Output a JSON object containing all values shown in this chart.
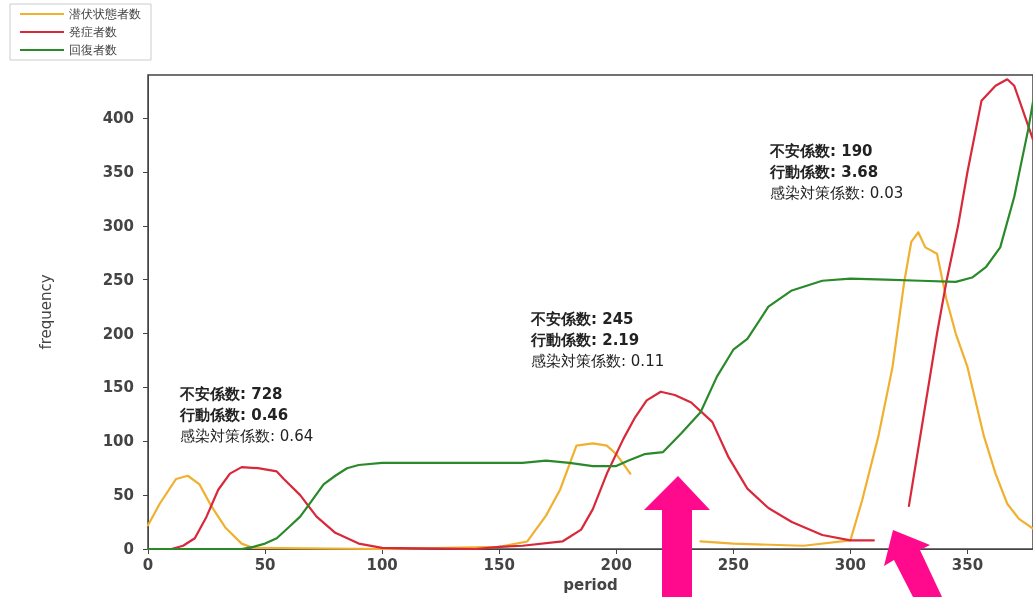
{
  "chart_data": {
    "type": "line",
    "xlabel": "period",
    "ylabel": "frequency",
    "xlim": [
      0,
      378
    ],
    "xticks": [
      0,
      50,
      100,
      150,
      200,
      250,
      300,
      350
    ],
    "ylim": [
      0,
      440
    ],
    "yticks": [
      0,
      50,
      100,
      150,
      200,
      250,
      300,
      350,
      400
    ],
    "grid": false,
    "legend": "top left",
    "marker": "none",
    "line_style": "solid",
    "series": [
      {
        "name": "潜伏状態者数",
        "color": "#f0b030",
        "x": [
          0,
          5,
          12,
          17,
          22,
          27,
          33,
          40,
          45,
          100,
          150,
          162,
          170,
          176,
          183,
          190,
          196,
          200,
          206,
          213,
          220,
          228,
          236,
          250,
          280,
          300,
          305,
          312,
          318,
          323,
          326,
          329,
          332,
          337,
          341,
          345,
          350,
          357,
          362,
          367,
          372,
          378
        ],
        "values": [
          22,
          42,
          65,
          68,
          60,
          40,
          20,
          5,
          1,
          0,
          2,
          7,
          31,
          55,
          96,
          98,
          96,
          88,
          70,
          null,
          null,
          null,
          7,
          5,
          3,
          8,
          45,
          105,
          169,
          248,
          285,
          294,
          280,
          274,
          232,
          200,
          169,
          105,
          70,
          42,
          28,
          19
        ]
      },
      {
        "name": "発症者数",
        "color": "#d8283a",
        "x": [
          0,
          10,
          15,
          20,
          25,
          30,
          35,
          40,
          47,
          55,
          58,
          65,
          72,
          80,
          90,
          100,
          140,
          150,
          160,
          177,
          185,
          190,
          196,
          203,
          208,
          213,
          219,
          225,
          232,
          241,
          248,
          256,
          265,
          275,
          288,
          300,
          310,
          318,
          325,
          331,
          337,
          341,
          346,
          350,
          356,
          362,
          367,
          370,
          374,
          378
        ],
        "values": [
          0,
          0,
          3,
          10,
          30,
          55,
          70,
          76,
          75,
          72,
          65,
          50,
          30,
          15,
          5,
          1,
          0,
          2,
          3,
          7,
          18,
          37,
          70,
          102,
          122,
          138,
          146,
          143,
          136,
          118,
          85,
          56,
          38,
          25,
          13,
          8,
          8,
          null,
          40,
          120,
          200,
          248,
          300,
          350,
          416,
          430,
          436,
          430,
          405,
          380
        ]
      },
      {
        "name": "回復者数",
        "color": "#2a8a2a",
        "x": [
          0,
          40,
          45,
          50,
          55,
          60,
          65,
          70,
          75,
          80,
          85,
          90,
          100,
          160,
          170,
          180,
          190,
          200,
          205,
          212,
          220,
          228,
          236,
          243,
          250,
          256,
          265,
          275,
          288,
          300,
          315,
          330,
          345,
          352,
          358,
          364,
          370,
          376,
          378
        ],
        "values": [
          0,
          0,
          2,
          5,
          10,
          20,
          30,
          45,
          60,
          68,
          75,
          78,
          80,
          80,
          82,
          80,
          77,
          77,
          82,
          88,
          90,
          108,
          127,
          160,
          185,
          195,
          225,
          240,
          249,
          251,
          250,
          249,
          248,
          252,
          262,
          280,
          327,
          390,
          415
        ]
      }
    ],
    "annotations": [
      "不安係数: 728",
      "行動係数: 0.46",
      "感染対策係数: 0.64",
      "不安係数: 245",
      "行動係数: 2.19",
      "感染対策係数: 0.11",
      "不安係数: 190",
      "行動係数: 3.68",
      "感染対策係数: 0.03"
    ]
  }
}
